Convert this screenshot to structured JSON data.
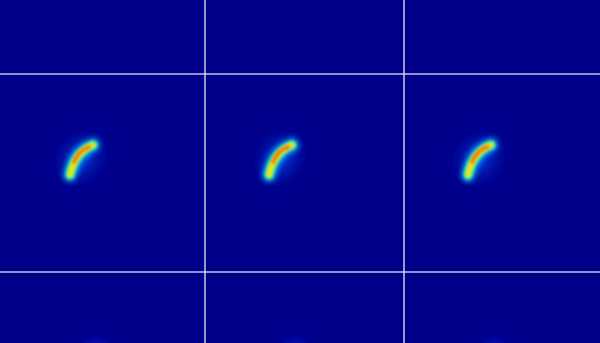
{
  "chart_data": {
    "type": "heatmap",
    "layout": {
      "rows": 3,
      "cols": 3
    },
    "colormap": "jet",
    "background_color": "#00008b",
    "grid_line_color": "#e6e6f0",
    "panels": [
      {
        "row": 0,
        "col": 0,
        "feature": "none"
      },
      {
        "row": 0,
        "col": 1,
        "feature": "none"
      },
      {
        "row": 0,
        "col": 2,
        "feature": "none"
      },
      {
        "row": 1,
        "col": 0,
        "feature": "arc",
        "peak_intensity": 0.9
      },
      {
        "row": 1,
        "col": 1,
        "feature": "arc",
        "peak_intensity": 0.95
      },
      {
        "row": 1,
        "col": 2,
        "feature": "arc",
        "peak_intensity": 1.0
      },
      {
        "row": 2,
        "col": 0,
        "feature": "faint",
        "peak_intensity": 0.15
      },
      {
        "row": 2,
        "col": 1,
        "feature": "faint",
        "peak_intensity": 0.15
      },
      {
        "row": 2,
        "col": 2,
        "feature": "faint",
        "peak_intensity": 0.15
      }
    ]
  }
}
